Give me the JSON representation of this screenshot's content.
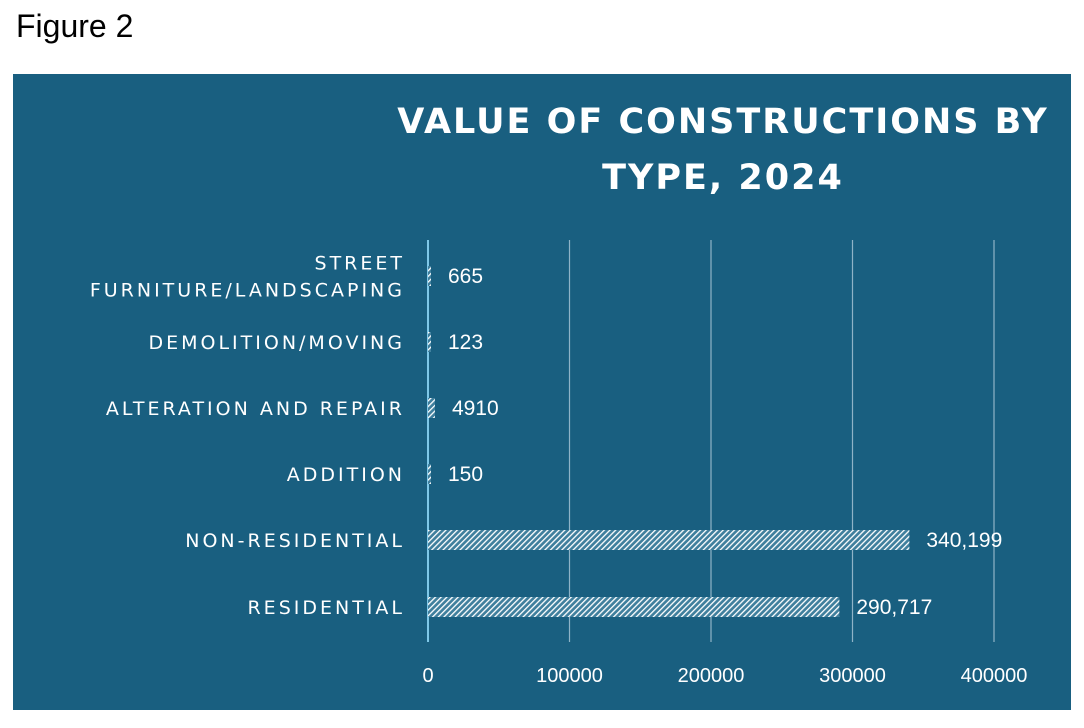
{
  "figure_label": "Figure 2",
  "chart_data": {
    "type": "bar",
    "orientation": "horizontal",
    "title_lines": [
      "VALUE OF CONSTRUCTIONS BY",
      "TYPE, 2024"
    ],
    "categories": [
      [
        "STREET",
        "FURNITURE/LANDSCAPING"
      ],
      [
        "DEMOLITION/MOVING"
      ],
      [
        "ALTERATION AND REPAIR"
      ],
      [
        "ADDITION"
      ],
      [
        "NON-RESIDENTIAL"
      ],
      [
        "RESIDENTIAL"
      ]
    ],
    "values": [
      665,
      123,
      4910,
      150,
      340199,
      290717
    ],
    "data_labels": [
      "665",
      "123",
      "4910",
      "150",
      "340,199",
      "290,717"
    ],
    "xlim": [
      0,
      400000
    ],
    "xticks": [
      0,
      100000,
      200000,
      300000,
      400000
    ],
    "xtick_labels": [
      "0",
      "100000",
      "200000",
      "300000",
      "400000"
    ],
    "grid": "vertical",
    "bar_fill": "white hatched pattern",
    "colors": {
      "background": "#195f80",
      "text": "#ffffff",
      "grid": "#8fb3c7",
      "axis": "#7fc8e8"
    }
  }
}
